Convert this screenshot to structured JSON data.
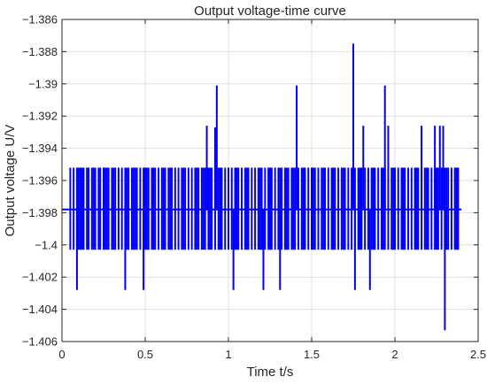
{
  "chart_data": {
    "type": "line",
    "title": "Output voltage-time curve",
    "xlabel": "Time t/s",
    "ylabel": "Output voltage U/V",
    "xlim": [
      0,
      2.5
    ],
    "ylim": [
      -1.406,
      -1.386
    ],
    "grid": true,
    "x_ticks": [
      0,
      0.5,
      1,
      1.5,
      2,
      2.5
    ],
    "x_tick_labels": [
      "0",
      "0.5",
      "1",
      "1.5",
      "2",
      "2.5"
    ],
    "y_ticks": [
      -1.386,
      -1.388,
      -1.39,
      -1.392,
      -1.394,
      -1.396,
      -1.398,
      -1.4,
      -1.402,
      -1.404,
      -1.406
    ],
    "y_tick_labels": [
      "-1.386",
      "-1.388",
      "-1.39",
      "-1.392",
      "-1.394",
      "-1.396",
      "-1.398",
      "-1.4",
      "-1.402",
      "-1.404",
      "-1.406"
    ],
    "series": [
      {
        "color": "#0000ff",
        "baseline": -1.3978,
        "x_range": [
          0,
          2.4
        ],
        "levels": {
          "high": -1.3952,
          "low": -1.4003
        },
        "toggle_times": [
          0.05,
          0.07,
          0.09,
          0.1,
          0.11,
          0.12,
          0.13,
          0.15,
          0.16,
          0.18,
          0.19,
          0.2,
          0.22,
          0.23,
          0.25,
          0.26,
          0.27,
          0.28,
          0.3,
          0.31,
          0.32,
          0.34,
          0.36,
          0.38,
          0.39,
          0.4,
          0.42,
          0.43,
          0.44,
          0.45,
          0.47,
          0.49,
          0.5,
          0.51,
          0.52,
          0.54,
          0.55,
          0.56,
          0.58,
          0.6,
          0.61,
          0.62,
          0.64,
          0.65,
          0.66,
          0.68,
          0.7,
          0.72,
          0.73,
          0.74,
          0.76,
          0.78,
          0.8,
          0.81,
          0.82,
          0.84,
          0.85,
          0.86,
          0.88,
          0.89,
          0.9,
          0.92,
          0.94,
          0.95,
          0.96,
          0.98,
          1.0,
          1.02,
          1.04,
          1.05,
          1.06,
          1.08,
          1.1,
          1.11,
          1.12,
          1.14,
          1.16,
          1.18,
          1.19,
          1.2,
          1.22,
          1.24,
          1.25,
          1.26,
          1.28,
          1.3,
          1.31,
          1.32,
          1.34,
          1.35,
          1.36,
          1.38,
          1.39,
          1.4,
          1.42,
          1.44,
          1.45,
          1.46,
          1.48,
          1.5,
          1.51,
          1.52,
          1.54,
          1.56,
          1.57,
          1.58,
          1.6,
          1.62,
          1.63,
          1.64,
          1.66,
          1.68,
          1.69,
          1.7,
          1.72,
          1.74,
          1.76,
          1.78,
          1.79,
          1.8,
          1.82,
          1.84,
          1.86,
          1.87,
          1.88,
          1.9,
          1.92,
          1.93,
          1.94,
          1.96,
          1.98,
          1.99,
          2.0,
          2.02,
          2.04,
          2.05,
          2.06,
          2.08,
          2.1,
          2.12,
          2.13,
          2.14,
          2.16,
          2.18,
          2.19,
          2.2,
          2.22,
          2.24,
          2.25,
          2.26,
          2.28,
          2.3,
          2.31,
          2.32,
          2.34,
          2.36,
          2.37,
          2.38
        ],
        "spikes": [
          {
            "x": 0.09,
            "y": -1.4028
          },
          {
            "x": 0.38,
            "y": -1.4028
          },
          {
            "x": 0.49,
            "y": -1.4028
          },
          {
            "x": 0.87,
            "y": -1.3926
          },
          {
            "x": 0.92,
            "y": -1.3927
          },
          {
            "x": 0.93,
            "y": -1.3901
          },
          {
            "x": 1.03,
            "y": -1.4028
          },
          {
            "x": 1.21,
            "y": -1.4028
          },
          {
            "x": 1.31,
            "y": -1.4028
          },
          {
            "x": 1.41,
            "y": -1.3901
          },
          {
            "x": 1.75,
            "y": -1.3875
          },
          {
            "x": 1.76,
            "y": -1.4028
          },
          {
            "x": 1.81,
            "y": -1.3926
          },
          {
            "x": 1.85,
            "y": -1.4028
          },
          {
            "x": 1.94,
            "y": -1.3901
          },
          {
            "x": 1.96,
            "y": -1.3926
          },
          {
            "x": 2.16,
            "y": -1.3926
          },
          {
            "x": 2.24,
            "y": -1.3926
          },
          {
            "x": 2.27,
            "y": -1.3926
          },
          {
            "x": 2.29,
            "y": -1.3926
          },
          {
            "x": 2.3,
            "y": -1.4053
          }
        ]
      }
    ]
  }
}
